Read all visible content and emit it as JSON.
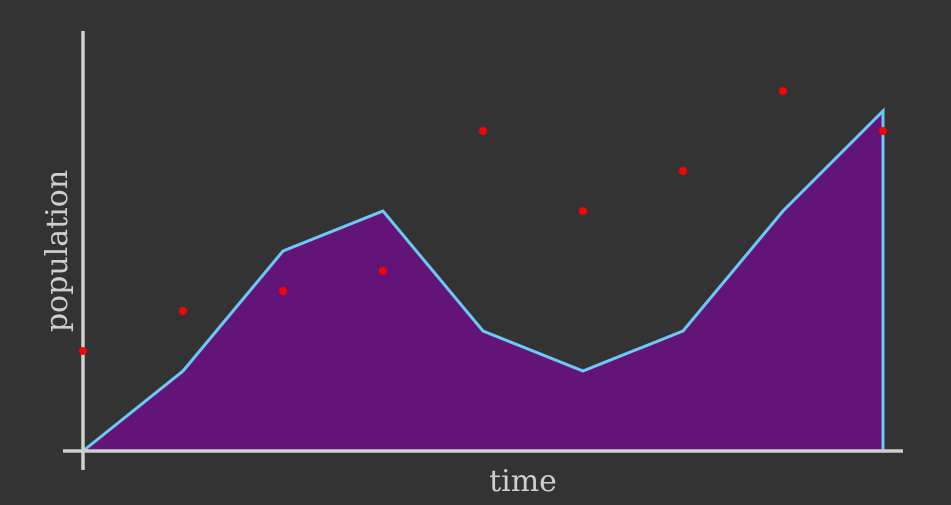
{
  "chart_data": {
    "type": "area",
    "xlabel": "time",
    "ylabel": "population",
    "xlim": [
      0,
      8
    ],
    "ylim": [
      0,
      10
    ],
    "grid": false,
    "series": [
      {
        "kind": "area",
        "x": [
          0,
          1,
          2,
          3,
          4,
          5,
          6,
          7,
          8
        ],
        "values": [
          0,
          2,
          5,
          6,
          3,
          2,
          3,
          6,
          8.5
        ]
      },
      {
        "kind": "scatter",
        "x": [
          0,
          1,
          2,
          3,
          4,
          5,
          6,
          7,
          8
        ],
        "values": [
          2.5,
          3.5,
          4,
          4.5,
          8,
          6,
          7,
          9,
          8
        ]
      }
    ]
  },
  "colors": {
    "background": "#333333",
    "axis": "#cfcfcf",
    "area_fill": "#631577",
    "area_line": "#6cc8f5",
    "scatter": "#ff0000"
  }
}
